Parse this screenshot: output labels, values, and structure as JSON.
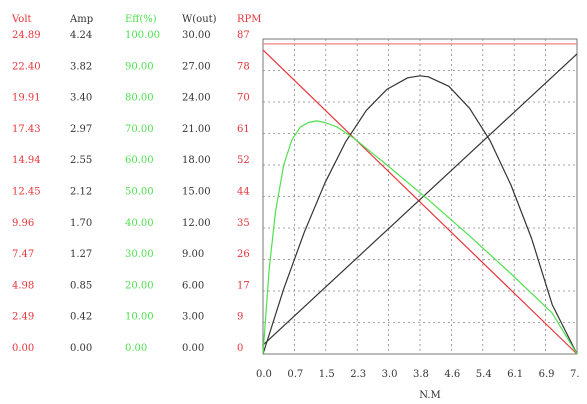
{
  "chart_data": {
    "type": "line",
    "xlabel": "N.M",
    "x_ticks": [
      "0.0",
      "0.7",
      "1.5",
      "2.3",
      "3.0",
      "3.8",
      "4.6",
      "5.4",
      "6.1",
      "6.9",
      "7."
    ],
    "xlim": [
      0,
      7.6
    ],
    "columns": [
      {
        "key": "volt",
        "header": "Volt",
        "color": "#e8343a",
        "labels": [
          "24.89",
          "22.40",
          "19.91",
          "17.43",
          "14.94",
          "12.45",
          "9.96",
          "7.47",
          "4.98",
          "2.49",
          "0.00"
        ]
      },
      {
        "key": "amp",
        "header": "Amp",
        "color": "#333333",
        "labels": [
          "4.24",
          "3.82",
          "3.40",
          "2.97",
          "2.55",
          "2.12",
          "1.70",
          "1.27",
          "0.85",
          "0.42",
          "0.00"
        ]
      },
      {
        "key": "eff",
        "header": "Eff(%)",
        "color": "#4fe04f",
        "labels": [
          "100.00",
          "90.00",
          "80.00",
          "70.00",
          "60.00",
          "50.00",
          "40.00",
          "30.00",
          "20.00",
          "10.00",
          "0.00"
        ]
      },
      {
        "key": "wout",
        "header": "W(out)",
        "color": "#333333",
        "labels": [
          "30.00",
          "27.00",
          "24.00",
          "21.00",
          "18.00",
          "15.00",
          "12.00",
          "9.00",
          "6.00",
          "3.00",
          "0.00"
        ]
      },
      {
        "key": "rpm",
        "header": "RPM",
        "color": "#e8343a",
        "labels": [
          "87",
          "78",
          "70",
          "61",
          "52",
          "44",
          "35",
          "26",
          "17",
          "9",
          "0"
        ]
      }
    ],
    "series": [
      {
        "scale": "volt",
        "color": "#f08080",
        "x": [
          0,
          7.6
        ],
        "y": [
          24.5,
          24.5
        ]
      },
      {
        "scale": "rpm",
        "color": "#e8343a",
        "x": [
          0,
          7.6
        ],
        "y": [
          84,
          0
        ]
      },
      {
        "scale": "amp",
        "color": "#333333",
        "x": [
          0,
          7.6
        ],
        "y": [
          0.12,
          4.04
        ]
      },
      {
        "scale": "wout",
        "color": "#333333",
        "x": [
          0,
          0.5,
          1.0,
          1.5,
          2.0,
          2.5,
          3.0,
          3.5,
          3.8,
          4.0,
          4.5,
          5.0,
          5.5,
          6.0,
          6.5,
          7.0,
          7.6
        ],
        "y": [
          0,
          6.2,
          11.6,
          16.3,
          20.2,
          23.2,
          25.2,
          26.3,
          26.5,
          26.4,
          25.5,
          23.4,
          20.3,
          16.1,
          11.0,
          4.7,
          0
        ]
      },
      {
        "scale": "eff",
        "color": "#4fe04f",
        "x": [
          0,
          0.15,
          0.3,
          0.5,
          0.7,
          0.9,
          1.1,
          1.3,
          1.5,
          1.8,
          2.2,
          3.0,
          4.0,
          5.0,
          6.0,
          7.0,
          7.6
        ],
        "y": [
          0,
          27,
          45,
          60,
          68,
          72,
          73.5,
          74,
          73.5,
          72,
          68.5,
          60,
          49,
          37.5,
          25.5,
          13,
          0
        ]
      }
    ]
  }
}
